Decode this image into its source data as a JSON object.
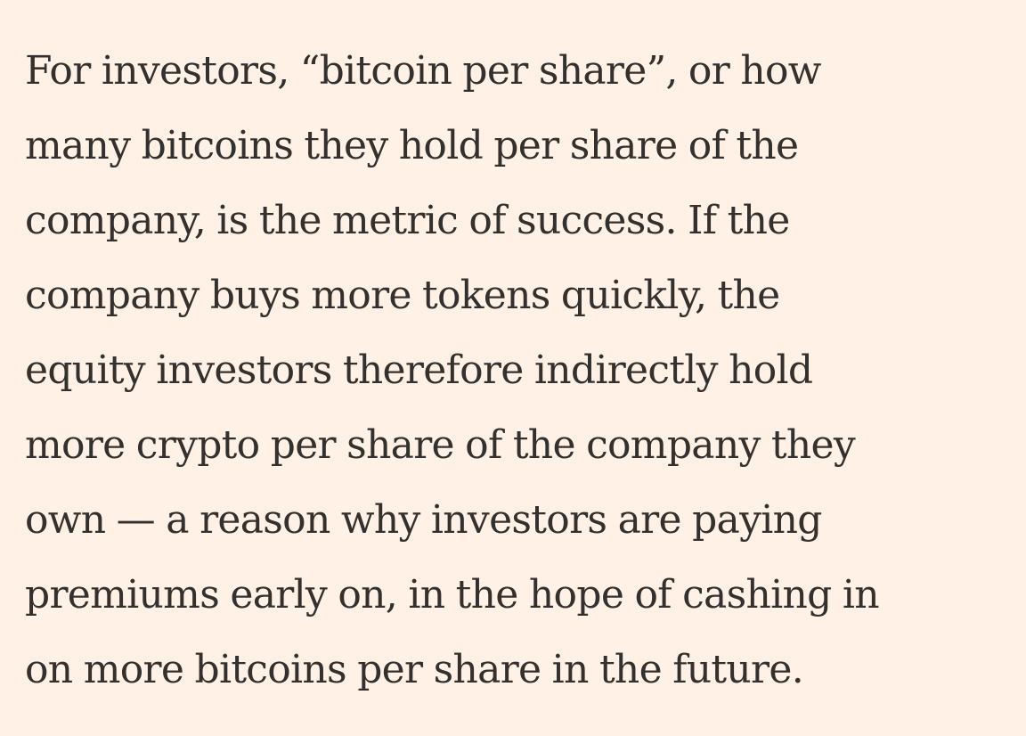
{
  "article": {
    "paragraph_lines": [
      "For investors, “bitcoin per share”, or how",
      "many bitcoins they hold per share of the",
      "company, is the metric of success. If the",
      "company buys more tokens quickly, the",
      "equity investors therefore indirectly hold",
      "more crypto per share of the company they",
      "own — a reason why investors are paying",
      "premiums early on, in the hope of cashing in",
      "on more bitcoins per share in the future."
    ]
  },
  "colors": {
    "background": "#fff1e5",
    "text": "#33302e"
  }
}
